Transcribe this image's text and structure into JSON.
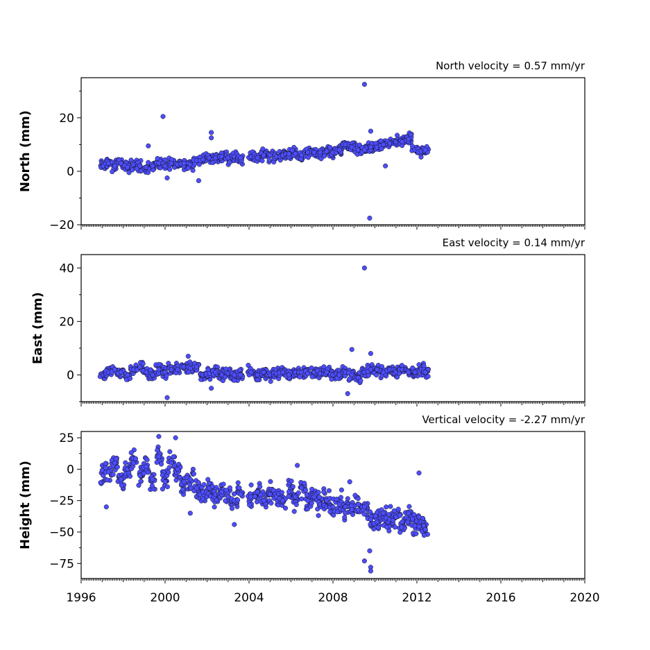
{
  "chart_data": [
    {
      "type": "scatter",
      "ylabel": "North (mm)",
      "velocity_text": "North velocity = 0.57 mm/yr",
      "xlim": [
        1996,
        2020
      ],
      "ylim": [
        -20,
        35
      ],
      "yticks": [
        -20,
        0,
        20
      ],
      "ytick_labels": [
        "−20",
        "0",
        "20"
      ],
      "marker_color": "#4d4dff",
      "points": [
        [
          1997.05,
          2
        ],
        [
          1997.3,
          3
        ],
        [
          1997.6,
          2
        ],
        [
          1997.9,
          3
        ],
        [
          1998.2,
          1.5
        ],
        [
          1998.5,
          2.5
        ],
        [
          1998.8,
          2
        ],
        [
          1999.1,
          1.5
        ],
        [
          1999.4,
          2
        ],
        [
          1999.7,
          3
        ],
        [
          2000.0,
          2
        ],
        [
          2000.3,
          3
        ],
        [
          2000.6,
          2.5
        ],
        [
          2000.9,
          3
        ],
        [
          2001.2,
          2.5
        ],
        [
          2001.5,
          4
        ],
        [
          2001.8,
          4.5
        ],
        [
          2002.1,
          5
        ],
        [
          2002.4,
          5
        ],
        [
          2002.7,
          5.5
        ],
        [
          2003.0,
          5
        ],
        [
          2003.3,
          5.5
        ],
        [
          2003.6,
          5
        ],
        [
          2004.1,
          5.5
        ],
        [
          2004.4,
          5
        ],
        [
          2004.7,
          6
        ],
        [
          2005.0,
          6
        ],
        [
          2005.3,
          5.5
        ],
        [
          2005.6,
          6
        ],
        [
          2005.9,
          6.5
        ],
        [
          2006.2,
          6.5
        ],
        [
          2006.5,
          6
        ],
        [
          2006.8,
          7
        ],
        [
          2007.1,
          7
        ],
        [
          2007.4,
          7
        ],
        [
          2007.7,
          7.5
        ],
        [
          2008.0,
          7
        ],
        [
          2008.3,
          8
        ],
        [
          2008.6,
          10
        ],
        [
          2008.9,
          9
        ],
        [
          2009.2,
          8
        ],
        [
          2009.5,
          8
        ],
        [
          2009.8,
          9
        ],
        [
          2010.1,
          9
        ],
        [
          2010.4,
          10
        ],
        [
          2010.7,
          10.5
        ],
        [
          2011.0,
          11
        ],
        [
          2011.3,
          11
        ],
        [
          2011.6,
          12
        ],
        [
          2011.9,
          8
        ],
        [
          2012.2,
          7.5
        ],
        [
          2012.4,
          8
        ],
        [
          1999.9,
          20.5
        ],
        [
          2002.2,
          14.5
        ],
        [
          2002.2,
          12.5
        ],
        [
          1999.2,
          9.5
        ],
        [
          2001.6,
          -3.5
        ],
        [
          2000.1,
          -2.5
        ],
        [
          2009.5,
          32.5
        ],
        [
          2009.75,
          -17.5
        ],
        [
          2009.8,
          15
        ],
        [
          2010.5,
          2
        ]
      ]
    },
    {
      "type": "scatter",
      "ylabel": "East (mm)",
      "velocity_text": "East velocity = 0.14 mm/yr",
      "xlim": [
        1996,
        2020
      ],
      "ylim": [
        -10,
        45
      ],
      "yticks": [
        0,
        20,
        40
      ],
      "ytick_labels": [
        "0",
        "20",
        "40"
      ],
      "marker_color": "#4d4dff",
      "points": [
        [
          1997.05,
          0
        ],
        [
          1997.3,
          1
        ],
        [
          1997.6,
          2
        ],
        [
          1997.9,
          1
        ],
        [
          1998.2,
          0
        ],
        [
          1998.5,
          2
        ],
        [
          1998.8,
          3
        ],
        [
          1999.1,
          1
        ],
        [
          1999.4,
          0
        ],
        [
          1999.7,
          2
        ],
        [
          2000.0,
          1
        ],
        [
          2000.3,
          2
        ],
        [
          2000.6,
          2
        ],
        [
          2000.9,
          3
        ],
        [
          2001.2,
          2.5
        ],
        [
          2001.5,
          3
        ],
        [
          2001.8,
          0
        ],
        [
          2002.1,
          0.5
        ],
        [
          2002.4,
          1
        ],
        [
          2002.7,
          0
        ],
        [
          2003.0,
          0.5
        ],
        [
          2003.3,
          0
        ],
        [
          2003.6,
          0
        ],
        [
          2004.1,
          1
        ],
        [
          2004.4,
          0
        ],
        [
          2004.7,
          1
        ],
        [
          2005.0,
          0
        ],
        [
          2005.3,
          0.5
        ],
        [
          2005.6,
          1
        ],
        [
          2005.9,
          0
        ],
        [
          2006.2,
          1
        ],
        [
          2006.5,
          1
        ],
        [
          2006.8,
          0.5
        ],
        [
          2007.1,
          1
        ],
        [
          2007.4,
          0.5
        ],
        [
          2007.7,
          1
        ],
        [
          2008.0,
          0
        ],
        [
          2008.3,
          0
        ],
        [
          2008.6,
          1
        ],
        [
          2008.9,
          0
        ],
        [
          2009.2,
          -1
        ],
        [
          2009.5,
          1
        ],
        [
          2009.8,
          2
        ],
        [
          2010.1,
          2
        ],
        [
          2010.4,
          1
        ],
        [
          2010.7,
          2
        ],
        [
          2011.0,
          1
        ],
        [
          2011.3,
          2
        ],
        [
          2011.6,
          1
        ],
        [
          2011.9,
          1
        ],
        [
          2012.2,
          2
        ],
        [
          2012.4,
          1
        ],
        [
          2009.5,
          40
        ],
        [
          2008.9,
          9.5
        ],
        [
          2008.7,
          -7
        ],
        [
          2000.1,
          -8.5
        ],
        [
          2002.2,
          -5
        ],
        [
          2001.1,
          7
        ],
        [
          2009.8,
          8
        ]
      ]
    },
    {
      "type": "scatter",
      "ylabel": "Height (mm)",
      "velocity_text": "Vertical velocity = -2.27 mm/yr",
      "xlim": [
        1996,
        2020
      ],
      "ylim": [
        -87,
        30
      ],
      "yticks": [
        -75,
        -50,
        -25,
        0,
        25
      ],
      "ytick_labels": [
        "−75",
        "−50",
        "−25",
        "0",
        "25"
      ],
      "xticks": [
        1996,
        2000,
        2004,
        2008,
        2012,
        2016,
        2020
      ],
      "xtick_labels": [
        "1996",
        "2000",
        "2004",
        "2008",
        "2012",
        "2016",
        "2020"
      ],
      "marker_color": "#4d4dff",
      "points": [
        [
          1997.05,
          -5
        ],
        [
          1997.3,
          -2
        ],
        [
          1997.6,
          5
        ],
        [
          1997.9,
          -8
        ],
        [
          1998.2,
          0
        ],
        [
          1998.5,
          5
        ],
        [
          1998.8,
          -5
        ],
        [
          1999.1,
          2
        ],
        [
          1999.4,
          -8
        ],
        [
          1999.7,
          10
        ],
        [
          2000.0,
          -10
        ],
        [
          2000.3,
          5
        ],
        [
          2000.6,
          0
        ],
        [
          2000.9,
          -10
        ],
        [
          2001.2,
          -8
        ],
        [
          2001.5,
          -15
        ],
        [
          2001.8,
          -18
        ],
        [
          2002.1,
          -15
        ],
        [
          2002.4,
          -20
        ],
        [
          2002.7,
          -18
        ],
        [
          2003.0,
          -22
        ],
        [
          2003.3,
          -25
        ],
        [
          2003.6,
          -20
        ],
        [
          2004.1,
          -22
        ],
        [
          2004.4,
          -18
        ],
        [
          2004.7,
          -25
        ],
        [
          2005.0,
          -20
        ],
        [
          2005.3,
          -22
        ],
        [
          2005.6,
          -25
        ],
        [
          2005.9,
          -18
        ],
        [
          2006.2,
          -22
        ],
        [
          2006.5,
          -15
        ],
        [
          2006.8,
          -25
        ],
        [
          2007.1,
          -22
        ],
        [
          2007.4,
          -28
        ],
        [
          2007.7,
          -25
        ],
        [
          2008.0,
          -30
        ],
        [
          2008.3,
          -28
        ],
        [
          2008.6,
          -30
        ],
        [
          2008.9,
          -32
        ],
        [
          2009.2,
          -28
        ],
        [
          2009.5,
          -30
        ],
        [
          2009.8,
          -40
        ],
        [
          2010.1,
          -42
        ],
        [
          2010.4,
          -35
        ],
        [
          2010.7,
          -40
        ],
        [
          2011.0,
          -38
        ],
        [
          2011.3,
          -42
        ],
        [
          2011.6,
          -35
        ],
        [
          2011.9,
          -45
        ],
        [
          2012.2,
          -42
        ],
        [
          2012.4,
          -48
        ],
        [
          1999.7,
          26
        ],
        [
          2000.5,
          25
        ],
        [
          1997.2,
          -30
        ],
        [
          2009.5,
          -73
        ],
        [
          2009.8,
          -78
        ],
        [
          2009.8,
          -81
        ],
        [
          2009.75,
          -65
        ],
        [
          2012.1,
          -3
        ],
        [
          2008.8,
          -10
        ],
        [
          2006.3,
          3
        ],
        [
          2003.3,
          -44
        ],
        [
          2001.2,
          -35
        ]
      ]
    }
  ]
}
